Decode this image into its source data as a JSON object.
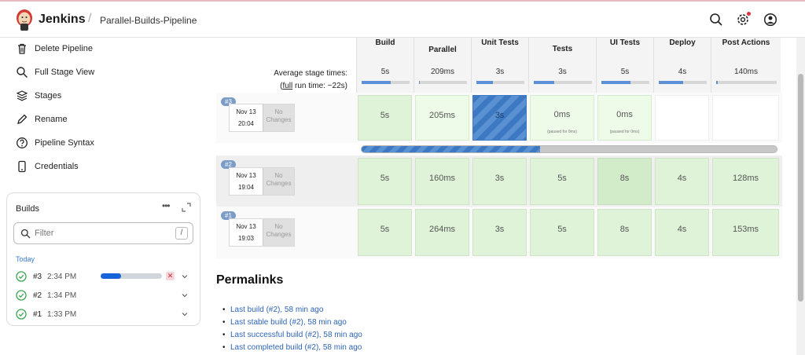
{
  "header": {
    "brand": "Jenkins",
    "separator": "/",
    "breadcrumb": "Parallel-Builds-Pipeline",
    "icons": [
      "search-icon",
      "gear-icon",
      "user-icon"
    ]
  },
  "sidebar": {
    "items": [
      {
        "label": "Delete Pipeline",
        "icon": "trash-icon"
      },
      {
        "label": "Full Stage View",
        "icon": "search-icon"
      },
      {
        "label": "Stages",
        "icon": "layers-icon"
      },
      {
        "label": "Rename",
        "icon": "pencil-icon"
      },
      {
        "label": "Pipeline Syntax",
        "icon": "help-icon"
      },
      {
        "label": "Credentials",
        "icon": "phone-icon"
      }
    ]
  },
  "builds_widget": {
    "title": "Builds",
    "more": "•••",
    "filter_placeholder": "Filter",
    "filter_shortcut": "/",
    "group": "Today",
    "items": [
      {
        "num": "#3",
        "time": "2:34 PM",
        "progress": 0.33,
        "running": true
      },
      {
        "num": "#2",
        "time": "1:34 PM",
        "running": false
      },
      {
        "num": "#1",
        "time": "1:33 PM",
        "running": false
      }
    ]
  },
  "stage_view": {
    "avg_label": "Average stage times:",
    "full_label": "full",
    "run_time": " run time: ~22s)",
    "stages": [
      {
        "name": "Build",
        "avg": "5s",
        "avg_fill": 0.6
      },
      {
        "name": "Parallel",
        "avg": "209ms",
        "avg_fill": 0.02
      },
      {
        "name": "Unit Tests",
        "avg": "3s",
        "avg_fill": 0.35
      },
      {
        "name": "Integration Tests",
        "name_visible": "Tests",
        "avg": "3s",
        "avg_fill": 0.35
      },
      {
        "name": "UI Tests",
        "avg": "5s",
        "avg_fill": 0.6
      },
      {
        "name": "Deploy",
        "avg": "4s",
        "avg_fill": 0.5
      },
      {
        "name": "Post Actions",
        "avg": "140ms",
        "avg_fill": 0.02
      }
    ],
    "runs": [
      {
        "badge": "#3",
        "date": "Nov 13",
        "time": "20:04",
        "changes": "No Changes",
        "cells": [
          "5s",
          "205ms",
          "3s",
          "0ms",
          "0ms",
          "",
          ""
        ],
        "notes": [
          "",
          "",
          "",
          "(paused for 0ms)",
          "(paused for 0ms)",
          "",
          ""
        ],
        "progress": 0.43
      },
      {
        "badge": "#2",
        "date": "Nov 13",
        "time": "19:04",
        "changes": "No Changes",
        "cells": [
          "5s",
          "160ms",
          "3s",
          "5s",
          "8s",
          "4s",
          "128ms"
        ]
      },
      {
        "badge": "#1",
        "date": "Nov 13",
        "time": "19:03",
        "changes": "No Changes",
        "cells": [
          "5s",
          "264ms",
          "3s",
          "5s",
          "8s",
          "4s",
          "153ms"
        ]
      }
    ]
  },
  "permalinks": {
    "title": "Permalinks",
    "links": [
      "Last build (#2), 58 min ago",
      "Last stable build (#2), 58 min ago",
      "Last successful build (#2), 58 min ago",
      "Last completed build (#2), 58 min ago"
    ]
  },
  "colors": {
    "success_cell": "#dff3d8",
    "running_cell": "#3d79c2",
    "link": "#2e64b5",
    "accent": "#1664d9"
  }
}
